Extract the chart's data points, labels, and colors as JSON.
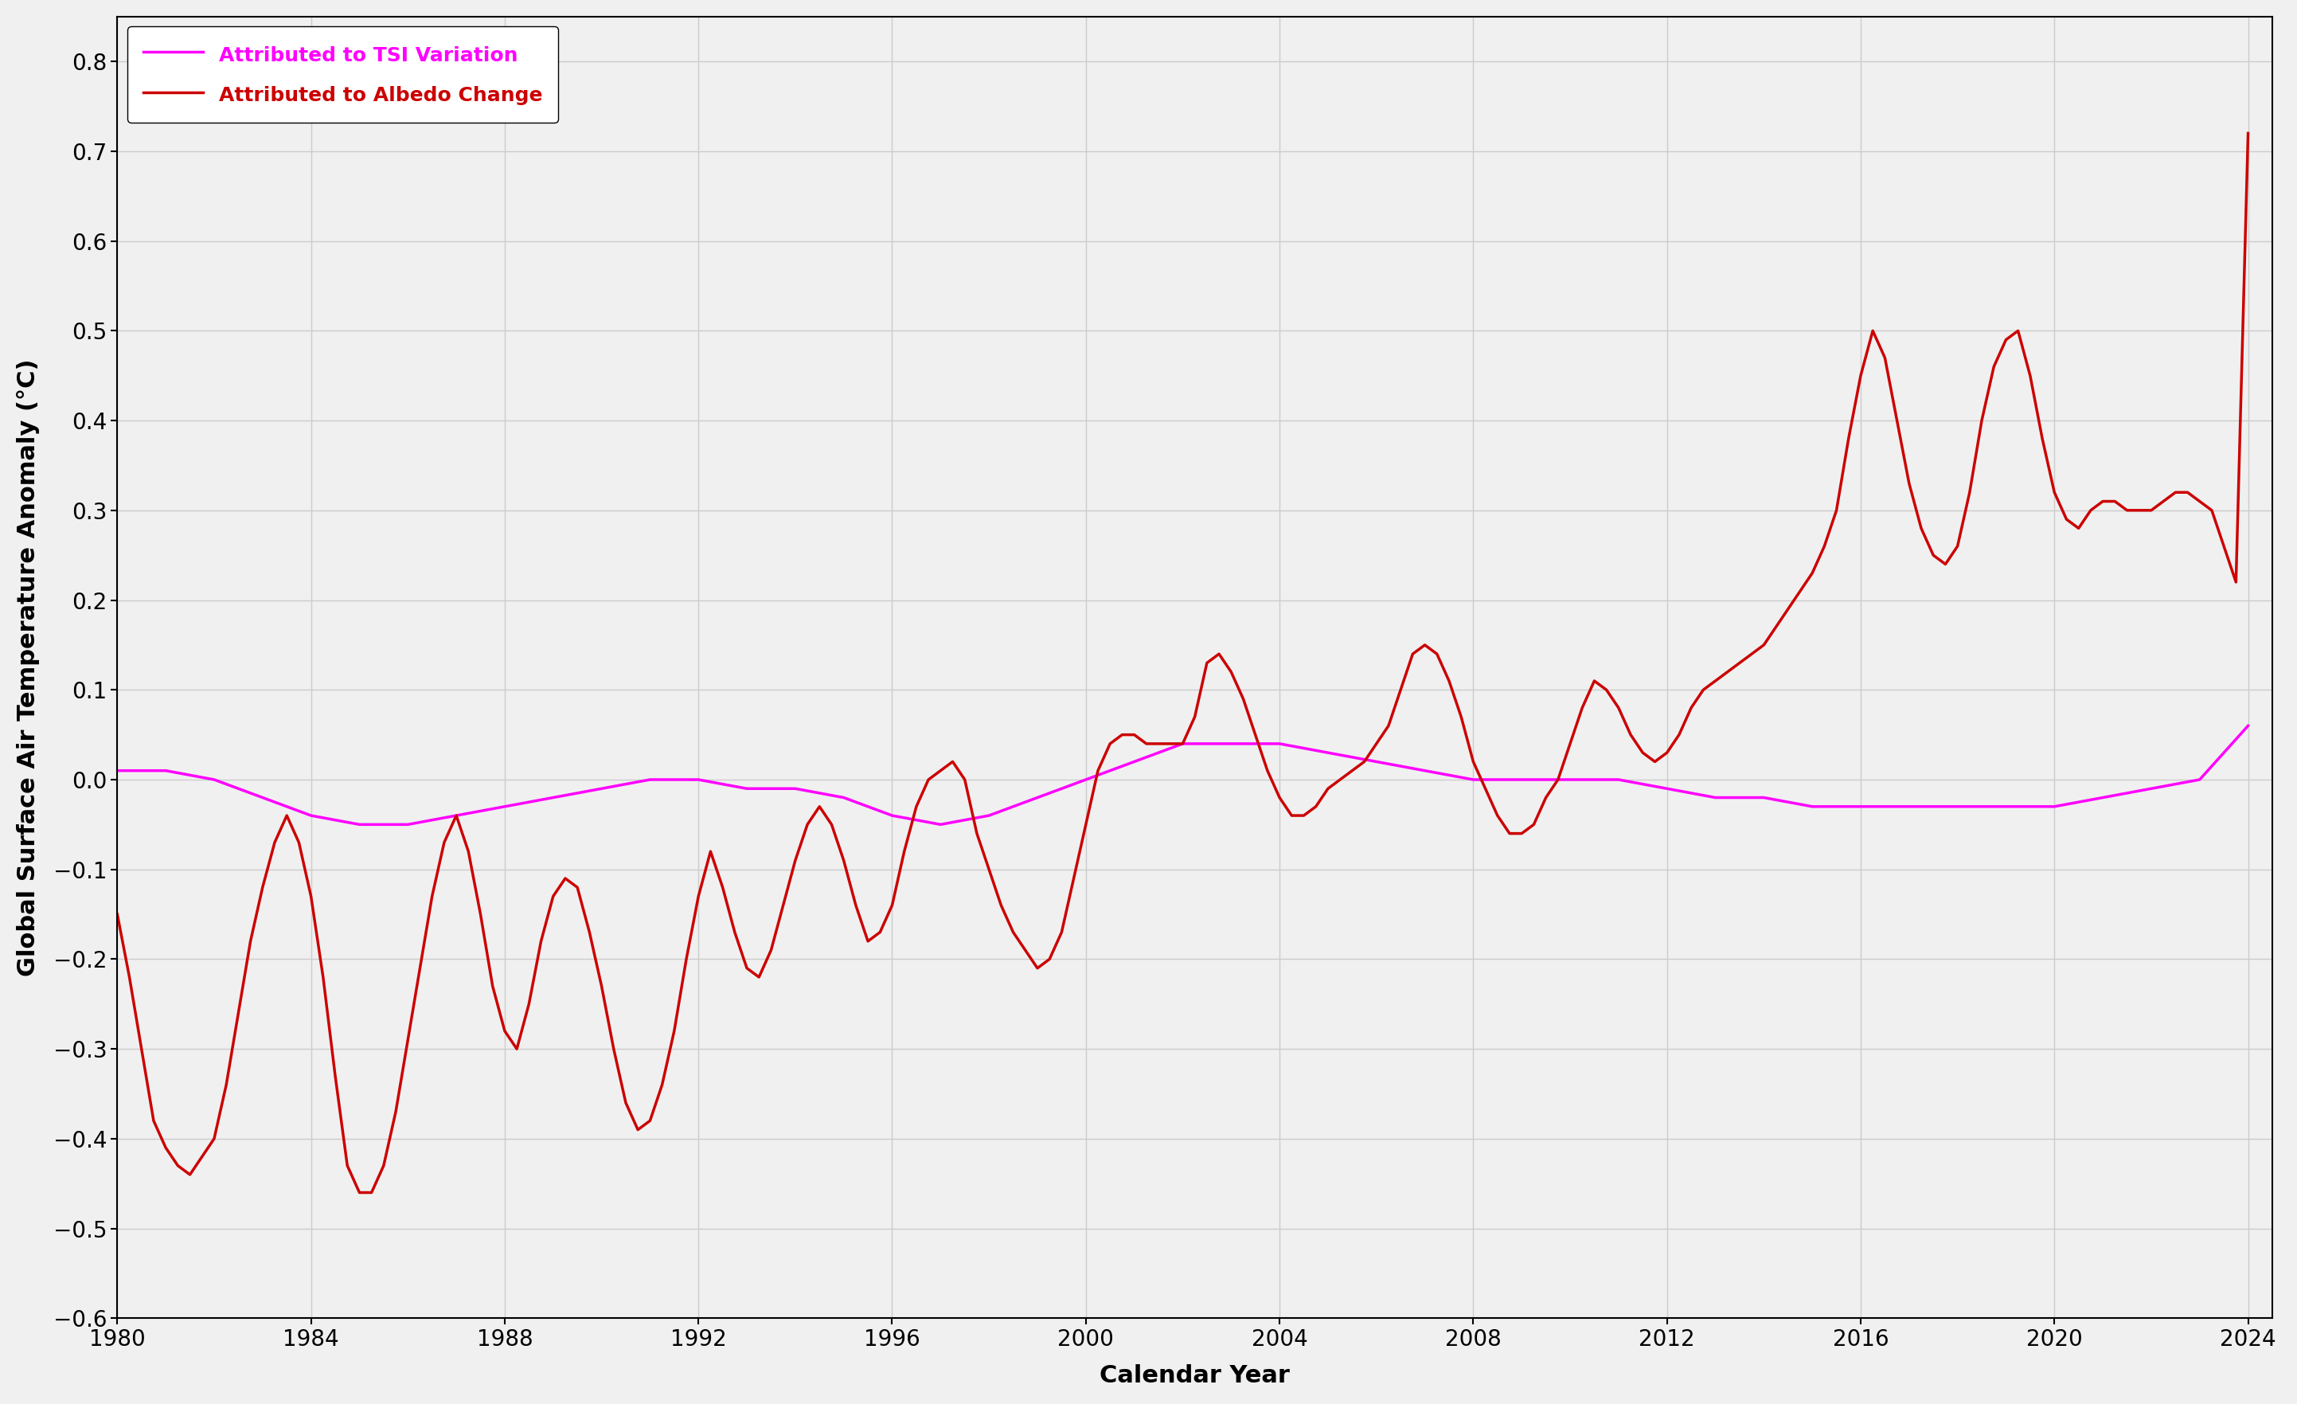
{
  "tsi_x": [
    1980,
    1981,
    1982,
    1983,
    1984,
    1985,
    1986,
    1987,
    1988,
    1989,
    1990,
    1991,
    1992,
    1993,
    1994,
    1995,
    1996,
    1997,
    1998,
    1999,
    2000,
    2001,
    2002,
    2003,
    2004,
    2005,
    2006,
    2007,
    2008,
    2009,
    2010,
    2011,
    2012,
    2013,
    2014,
    2015,
    2016,
    2017,
    2018,
    2019,
    2020,
    2021,
    2022,
    2023,
    2024
  ],
  "tsi_y": [
    0.01,
    0.01,
    0.0,
    -0.02,
    -0.04,
    -0.05,
    -0.05,
    -0.04,
    -0.03,
    -0.02,
    -0.01,
    0.0,
    0.0,
    -0.01,
    -0.01,
    -0.02,
    -0.04,
    -0.05,
    -0.04,
    -0.02,
    0.0,
    0.02,
    0.04,
    0.04,
    0.04,
    0.03,
    0.02,
    0.01,
    0.0,
    0.0,
    0.0,
    0.0,
    -0.01,
    -0.02,
    -0.02,
    -0.03,
    -0.03,
    -0.03,
    -0.03,
    -0.03,
    -0.03,
    -0.02,
    -0.01,
    0.0,
    0.06
  ],
  "albedo_x": [
    1980.0,
    1980.25,
    1980.5,
    1980.75,
    1981.0,
    1981.25,
    1981.5,
    1981.75,
    1982.0,
    1982.25,
    1982.5,
    1982.75,
    1983.0,
    1983.25,
    1983.5,
    1983.75,
    1984.0,
    1984.25,
    1984.5,
    1984.75,
    1985.0,
    1985.25,
    1985.5,
    1985.75,
    1986.0,
    1986.25,
    1986.5,
    1986.75,
    1987.0,
    1987.25,
    1987.5,
    1987.75,
    1988.0,
    1988.25,
    1988.5,
    1988.75,
    1989.0,
    1989.25,
    1989.5,
    1989.75,
    1990.0,
    1990.25,
    1990.5,
    1990.75,
    1991.0,
    1991.25,
    1991.5,
    1991.75,
    1992.0,
    1992.25,
    1992.5,
    1992.75,
    1993.0,
    1993.25,
    1993.5,
    1993.75,
    1994.0,
    1994.25,
    1994.5,
    1994.75,
    1995.0,
    1995.25,
    1995.5,
    1995.75,
    1996.0,
    1996.25,
    1996.5,
    1996.75,
    1997.0,
    1997.25,
    1997.5,
    1997.75,
    1998.0,
    1998.25,
    1998.5,
    1998.75,
    1999.0,
    1999.25,
    1999.5,
    1999.75,
    2000.0,
    2000.25,
    2000.5,
    2000.75,
    2001.0,
    2001.25,
    2001.5,
    2001.75,
    2002.0,
    2002.25,
    2002.5,
    2002.75,
    2003.0,
    2003.25,
    2003.5,
    2003.75,
    2004.0,
    2004.25,
    2004.5,
    2004.75,
    2005.0,
    2005.25,
    2005.5,
    2005.75,
    2006.0,
    2006.25,
    2006.5,
    2006.75,
    2007.0,
    2007.25,
    2007.5,
    2007.75,
    2008.0,
    2008.25,
    2008.5,
    2008.75,
    2009.0,
    2009.25,
    2009.5,
    2009.75,
    2010.0,
    2010.25,
    2010.5,
    2010.75,
    2011.0,
    2011.25,
    2011.5,
    2011.75,
    2012.0,
    2012.25,
    2012.5,
    2012.75,
    2013.0,
    2013.25,
    2013.5,
    2013.75,
    2014.0,
    2014.25,
    2014.5,
    2014.75,
    2015.0,
    2015.25,
    2015.5,
    2015.75,
    2016.0,
    2016.25,
    2016.5,
    2016.75,
    2017.0,
    2017.25,
    2017.5,
    2017.75,
    2018.0,
    2018.25,
    2018.5,
    2018.75,
    2019.0,
    2019.25,
    2019.5,
    2019.75,
    2020.0,
    2020.25,
    2020.5,
    2020.75,
    2021.0,
    2021.25,
    2021.5,
    2021.75,
    2022.0,
    2022.25,
    2022.5,
    2022.75,
    2023.0,
    2023.25,
    2023.5,
    2023.75,
    2024.0
  ],
  "albedo_y": [
    -0.15,
    -0.22,
    -0.3,
    -0.38,
    -0.41,
    -0.43,
    -0.44,
    -0.42,
    -0.4,
    -0.34,
    -0.26,
    -0.18,
    -0.12,
    -0.07,
    -0.04,
    -0.07,
    -0.13,
    -0.22,
    -0.33,
    -0.43,
    -0.46,
    -0.46,
    -0.43,
    -0.37,
    -0.29,
    -0.21,
    -0.13,
    -0.07,
    -0.04,
    -0.08,
    -0.15,
    -0.23,
    -0.28,
    -0.3,
    -0.25,
    -0.18,
    -0.13,
    -0.11,
    -0.12,
    -0.17,
    -0.23,
    -0.3,
    -0.36,
    -0.39,
    -0.38,
    -0.34,
    -0.28,
    -0.2,
    -0.13,
    -0.08,
    -0.12,
    -0.17,
    -0.21,
    -0.22,
    -0.19,
    -0.14,
    -0.09,
    -0.05,
    -0.03,
    -0.05,
    -0.09,
    -0.14,
    -0.18,
    -0.17,
    -0.14,
    -0.08,
    -0.03,
    0.0,
    0.01,
    0.02,
    0.0,
    -0.06,
    -0.1,
    -0.14,
    -0.17,
    -0.19,
    -0.21,
    -0.2,
    -0.17,
    -0.11,
    -0.05,
    0.01,
    0.04,
    0.05,
    0.05,
    0.04,
    0.04,
    0.04,
    0.04,
    0.07,
    0.13,
    0.14,
    0.12,
    0.09,
    0.05,
    0.01,
    -0.02,
    -0.04,
    -0.04,
    -0.03,
    -0.01,
    0.0,
    0.01,
    0.02,
    0.04,
    0.06,
    0.1,
    0.14,
    0.15,
    0.14,
    0.11,
    0.07,
    0.02,
    -0.01,
    -0.04,
    -0.06,
    -0.06,
    -0.05,
    -0.02,
    0.0,
    0.04,
    0.08,
    0.11,
    0.1,
    0.08,
    0.05,
    0.03,
    0.02,
    0.03,
    0.05,
    0.08,
    0.1,
    0.11,
    0.12,
    0.13,
    0.14,
    0.15,
    0.17,
    0.19,
    0.21,
    0.23,
    0.26,
    0.3,
    0.38,
    0.45,
    0.5,
    0.47,
    0.4,
    0.33,
    0.28,
    0.25,
    0.24,
    0.26,
    0.32,
    0.4,
    0.46,
    0.49,
    0.5,
    0.45,
    0.38,
    0.32,
    0.29,
    0.28,
    0.3,
    0.31,
    0.31,
    0.3,
    0.3,
    0.3,
    0.31,
    0.32,
    0.32,
    0.31,
    0.3,
    0.26,
    0.22,
    0.72
  ],
  "tsi_color": "#FF00FF",
  "albedo_color": "#CC0000",
  "tsi_linewidth": 2.5,
  "albedo_linewidth": 2.5,
  "xlabel": "Calendar Year",
  "ylabel": "Global Surface Air Temperature Anomaly (°C)",
  "legend_tsi": "Attributed to TSI Variation",
  "legend_albedo": "Attributed to Albedo Change",
  "xlim": [
    1980,
    2024.5
  ],
  "ylim": [
    -0.6,
    0.85
  ],
  "xticks": [
    1980,
    1984,
    1988,
    1992,
    1996,
    2000,
    2004,
    2008,
    2012,
    2016,
    2020,
    2024
  ],
  "yticks": [
    -0.6,
    -0.5,
    -0.4,
    -0.3,
    -0.2,
    -0.1,
    0.0,
    0.1,
    0.2,
    0.3,
    0.4,
    0.5,
    0.6,
    0.7,
    0.8
  ],
  "grid_color": "#cccccc",
  "background_color": "#f0f0f0",
  "legend_fontsize": 18,
  "axis_fontsize": 22,
  "tick_fontsize": 20
}
